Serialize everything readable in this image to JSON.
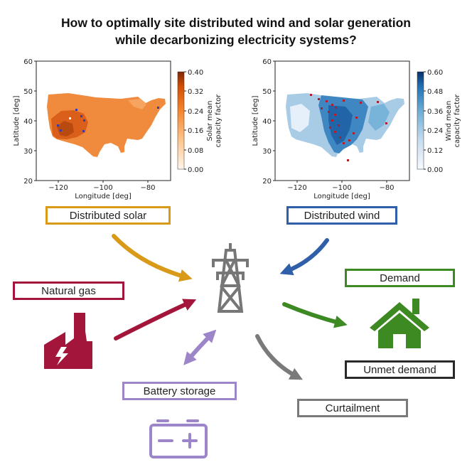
{
  "title": {
    "line1": "How to optimally site distributed wind and solar generation",
    "line2": "while decarbonizing electricity systems?"
  },
  "nodes": {
    "distributed_solar": "Distributed solar",
    "distributed_wind": "Distributed wind",
    "natural_gas": "Natural gas",
    "demand": "Demand",
    "unmet_demand": "Unmet demand",
    "battery_storage": "Battery storage",
    "curtailment": "Curtailment"
  },
  "colors": {
    "solar": "#D99A1A",
    "wind": "#2F5FA8",
    "gas": "#A3153A",
    "demand": "#3E8A22",
    "battery": "#9D85C9",
    "curtail": "#7A7A7A",
    "black": "#2A2A2A"
  },
  "icons": {
    "hub": "transmission-tower-icon",
    "gas": "factory-lightning-icon",
    "demand": "house-icon",
    "battery": "battery-icon"
  },
  "maps": {
    "solar": {
      "ylabel": "Latitude [deg]",
      "xlabel": "Longitude [deg]",
      "yticks": [
        "60",
        "50",
        "40",
        "30",
        "20"
      ],
      "xticks": [
        "−120",
        "−100",
        "−80"
      ],
      "colorbar_label_1": "Solar mean",
      "colorbar_label_2": "capacity factor",
      "colorbar_ticks": [
        "0.40",
        "0.32",
        "0.24",
        "0.16",
        "0.08",
        "0.00"
      ]
    },
    "wind": {
      "ylabel": "Latitude [deg]",
      "xlabel": "Longitude [deg]",
      "yticks": [
        "60",
        "50",
        "40",
        "30",
        "20"
      ],
      "xticks": [
        "−120",
        "−100",
        "−80"
      ],
      "colorbar_label_1": "Wind mean",
      "colorbar_label_2": "capacity factor",
      "colorbar_ticks": [
        "0.60",
        "0.48",
        "0.36",
        "0.24",
        "0.12",
        "0.00"
      ]
    }
  }
}
